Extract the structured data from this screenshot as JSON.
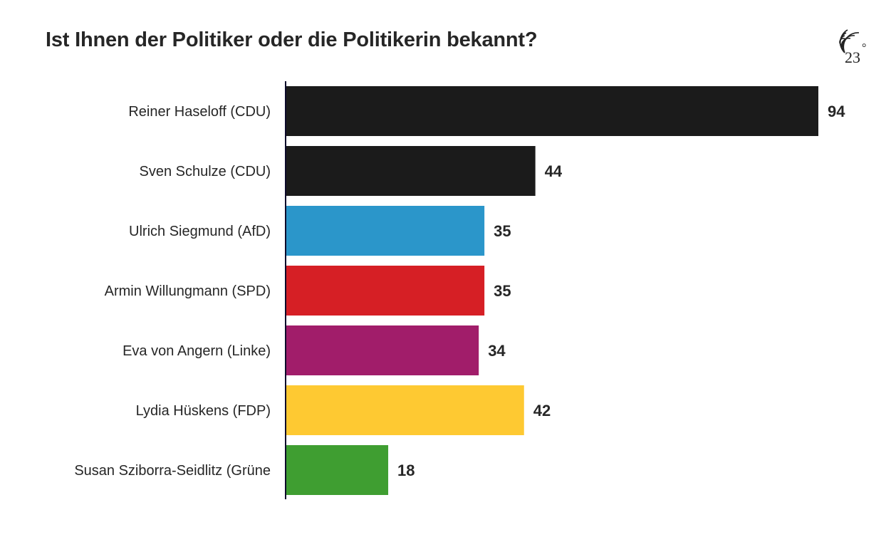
{
  "brand": {
    "logo_text": "23",
    "logo_degree": "°",
    "logo_icon": "signal-waves-icon"
  },
  "chart_data": {
    "type": "bar",
    "orientation": "horizontal",
    "title": "Ist Ihnen der Politiker oder die Politikerin bekannt?",
    "xlabel": "",
    "ylabel": "",
    "xlim": [
      0,
      94
    ],
    "grid": false,
    "legend": "none",
    "categories": [
      "Reiner Haseloff (CDU)",
      "Sven Schulze (CDU)",
      "Ulrich Siegmund (AfD)",
      "Armin Willungmann (SPD)",
      "Eva von Angern (Linke)",
      "Lydia Hüskens (FDP)",
      "Susan Sziborra-Seidlitz (Grüne"
    ],
    "values": [
      94,
      44,
      35,
      35,
      34,
      42,
      18
    ],
    "value_labels": [
      "94",
      "44",
      "35",
      "35",
      "34",
      "42",
      "18"
    ],
    "colors": [
      "#1b1b1b",
      "#1b1b1b",
      "#2b96ca",
      "#d61f25",
      "#a11d6a",
      "#fec932",
      "#3f9e31"
    ],
    "axis_color": "#0d0b2b"
  }
}
